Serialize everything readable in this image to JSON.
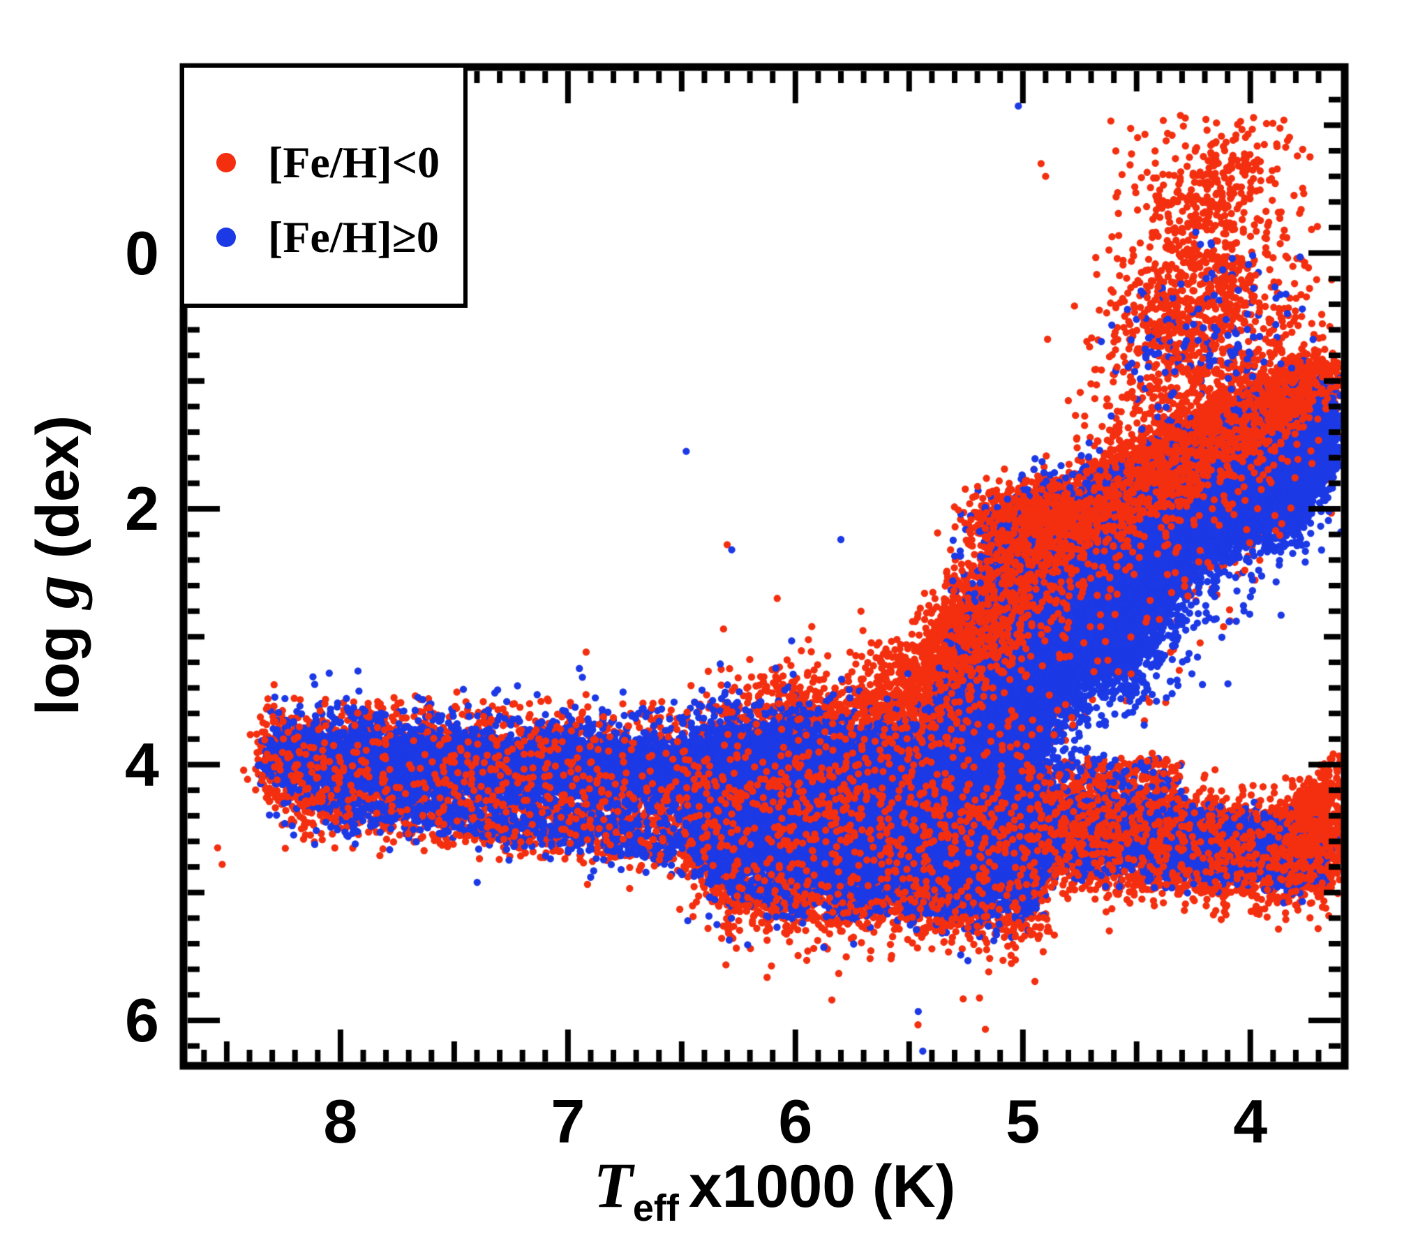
{
  "figure": {
    "background": "#ffffff"
  },
  "chart_data": {
    "type": "scatter",
    "title": "",
    "description": "Kiel diagram: surface gravity log g versus effective temperature for a large stellar sample, split by metallicity",
    "xlabel_parts": {
      "symbol": "T",
      "subscript": "eff",
      "rest": "x1000 (K)"
    },
    "ylabel_parts": {
      "pre": "log ",
      "symbol": "g",
      "post": " (dex)"
    },
    "x_axis": {
      "label": "Teff x1000 (K)",
      "min": 3.585,
      "max": 8.69,
      "reversed": true,
      "major_ticks": [
        {
          "value": 8,
          "label": "8"
        },
        {
          "value": 7,
          "label": "7"
        },
        {
          "value": 6,
          "label": "6"
        },
        {
          "value": 5,
          "label": "5"
        },
        {
          "value": 4,
          "label": "4"
        }
      ],
      "medium_tick_step": 0.5,
      "minor_tick_step": 0.1
    },
    "y_axis": {
      "label": "log g (dex)",
      "min": -1.455,
      "max": 6.355,
      "inverted": true,
      "major_ticks": [
        {
          "value": 0,
          "label": "0"
        },
        {
          "value": 2,
          "label": "2"
        },
        {
          "value": 4,
          "label": "4"
        },
        {
          "value": 6,
          "label": "6"
        }
      ],
      "medium_tick_step": 1.0,
      "minor_tick_step": 0.2
    },
    "legend": {
      "position": "top-left",
      "items": [
        {
          "label": "[Fe/H]<0",
          "color_key": "red"
        },
        {
          "label": "[Fe/H]≥0",
          "color_key": "blue"
        }
      ]
    },
    "colors": {
      "red": "#f42f10",
      "blue": "#1c39e6",
      "axis": "#000000"
    },
    "marker_radius_px": 5.2,
    "seed": 42,
    "draw_order": [
      "red_most",
      "blue_all",
      "red_resprinkle"
    ],
    "series": [
      {
        "name": "metal_poor",
        "label": "[Fe/H]<0",
        "color_key": "red",
        "components": [
          {
            "k": "band",
            "t": [
              8.35,
              6.4
            ],
            "g": [
              3.97,
              4.12
            ],
            "st": 0.04,
            "sg": 0.2,
            "n": 2600
          },
          {
            "k": "band",
            "t": [
              8.2,
              6.35
            ],
            "g": [
              4.28,
              4.62
            ],
            "st": 0.05,
            "sg": 0.13,
            "n": 900
          },
          {
            "k": "band",
            "t": [
              6.4,
              4.9
            ],
            "g": [
              4.32,
              4.52
            ],
            "st": 0.05,
            "sg": 0.4,
            "n": 5200
          },
          {
            "k": "band",
            "t": [
              4.9,
              3.66
            ],
            "g": [
              4.52,
              4.72
            ],
            "st": 0.04,
            "sg": 0.19,
            "n": 3800
          },
          {
            "k": "blob",
            "t": 3.76,
            "g": 4.62,
            "st": 0.07,
            "sg": 0.14,
            "n": 1000
          },
          {
            "k": "band",
            "t": [
              3.78,
              3.64
            ],
            "g": [
              4.45,
              4.18
            ],
            "st": 0.04,
            "sg": 0.12,
            "n": 300
          },
          {
            "k": "band",
            "t": [
              6.3,
              5.1
            ],
            "g": [
              4.95,
              5.1
            ],
            "st": 0.1,
            "sg": 0.12,
            "n": 450
          },
          {
            "k": "band",
            "t": [
              5.6,
              5.05
            ],
            "g": [
              3.55,
              3.05
            ],
            "st": 0.14,
            "sg": 0.22,
            "n": 1100
          },
          {
            "k": "band",
            "t": [
              6.15,
              5.35
            ],
            "g": [
              3.5,
              3.75
            ],
            "st": 0.1,
            "sg": 0.15,
            "n": 420
          },
          {
            "k": "box",
            "t": [
              4.85,
              4.3
            ],
            "g": [
              3.95,
              4.55
            ],
            "n": 350
          },
          {
            "k": "band",
            "t": [
              5.25,
              4.92
            ],
            "g": [
              3.15,
              2.35
            ],
            "st": 0.1,
            "sg": 0.18,
            "n": 2400
          },
          {
            "k": "blob",
            "t": 4.86,
            "g": 2.1,
            "st": 0.14,
            "sg": 0.13,
            "n": 3200
          },
          {
            "k": "band",
            "t": [
              4.6,
              4.0
            ],
            "g": [
              1.95,
              1.35
            ],
            "st": 0.09,
            "sg": 0.16,
            "n": 3800
          },
          {
            "k": "band",
            "t": [
              3.95,
              3.68
            ],
            "g": [
              1.28,
              1.02
            ],
            "st": 0.05,
            "sg": 0.12,
            "n": 1400
          },
          {
            "k": "band",
            "t": [
              5.2,
              3.78
            ],
            "g": [
              3.3,
              1.05
            ],
            "st": 0.12,
            "sg": 0.42,
            "n": 2400
          },
          {
            "k": "band",
            "t": [
              4.5,
              4.02
            ],
            "g": [
              0.8,
              0.1
            ],
            "st": 0.13,
            "sg": 0.33,
            "n": 650
          },
          {
            "k": "band",
            "t": [
              4.32,
              4.08
            ],
            "g": [
              -0.2,
              -0.8
            ],
            "st": 0.13,
            "sg": 0.2,
            "n": 220
          },
          {
            "k": "box",
            "t": [
              3.72,
              4.62
            ],
            "g": [
              -1.1,
              0.6
            ],
            "n": 130
          },
          {
            "k": "box",
            "t": [
              6.35,
              4.9
            ],
            "g": [
              4.95,
              5.3
            ],
            "n": 220
          },
          {
            "k": "box",
            "t": [
              8.3,
              6.4
            ],
            "g": [
              3.5,
              3.8
            ],
            "n": 120
          }
        ],
        "outliers": [
          [
            4.92,
            -0.7
          ],
          [
            4.59,
            -0.44
          ],
          [
            4.58,
            -0.31
          ],
          [
            4.19,
            -0.44
          ],
          [
            4.9,
            -0.6
          ],
          [
            6.3,
            2.28
          ],
          [
            6.92,
            3.12
          ],
          [
            6.08,
            2.7
          ],
          [
            5.95,
            5.53
          ],
          [
            5.4,
            5.44
          ],
          [
            3.73,
            5.08
          ],
          [
            4.29,
            5.14
          ],
          [
            8.54,
            4.65
          ],
          [
            8.52,
            4.78
          ],
          [
            5.15,
            5.62
          ],
          [
            4.62,
            5.3
          ]
        ]
      },
      {
        "name": "metal_rich",
        "label": "[Fe/H]≥0",
        "color_key": "blue",
        "components": [
          {
            "k": "band",
            "t": [
              8.28,
              6.4
            ],
            "g": [
              3.95,
              4.07
            ],
            "st": 0.04,
            "sg": 0.105,
            "n": 5600
          },
          {
            "k": "band",
            "t": [
              8.28,
              6.4
            ],
            "g": [
              3.95,
              4.07
            ],
            "st": 0.05,
            "sg": 0.24,
            "n": 1100
          },
          {
            "k": "band",
            "t": [
              8.05,
              6.45
            ],
            "g": [
              4.3,
              4.6
            ],
            "st": 0.05,
            "sg": 0.1,
            "n": 650
          },
          {
            "k": "band",
            "t": [
              6.4,
              4.95
            ],
            "g": [
              4.28,
              4.47
            ],
            "st": 0.05,
            "sg": 0.29,
            "n": 14500
          },
          {
            "k": "band",
            "t": [
              5.95,
              5.15
            ],
            "g": [
              4.42,
              4.55
            ],
            "st": 0.08,
            "sg": 0.18,
            "n": 3800
          },
          {
            "k": "band",
            "t": [
              6.35,
              5.2
            ],
            "g": [
              3.97,
              4.07
            ],
            "st": 0.05,
            "sg": 0.11,
            "n": 2600
          },
          {
            "k": "band",
            "t": [
              4.9,
              3.72
            ],
            "g": [
              4.53,
              4.7
            ],
            "st": 0.04,
            "sg": 0.12,
            "n": 3400
          },
          {
            "k": "band",
            "t": [
              5.22,
              4.88
            ],
            "g": [
              3.85,
              3.1
            ],
            "st": 0.11,
            "sg": 0.22,
            "n": 2800
          },
          {
            "k": "band",
            "t": [
              5.3,
              5.05
            ],
            "g": [
              4.1,
              3.7
            ],
            "st": 0.1,
            "sg": 0.15,
            "n": 1500
          },
          {
            "k": "band",
            "t": [
              4.95,
              4.7
            ],
            "g": [
              3.15,
              2.6
            ],
            "st": 0.12,
            "sg": 0.2,
            "n": 2600
          },
          {
            "k": "blob",
            "t": 4.72,
            "g": 2.62,
            "st": 0.17,
            "sg": 0.33,
            "n": 6500
          },
          {
            "k": "band",
            "t": [
              4.6,
              3.86
            ],
            "g": [
              2.3,
              1.7
            ],
            "st": 0.1,
            "sg": 0.2,
            "n": 5200
          },
          {
            "k": "band",
            "t": [
              3.9,
              3.7
            ],
            "g": [
              1.95,
              1.35
            ],
            "st": 0.06,
            "sg": 0.17,
            "n": 3200
          },
          {
            "k": "band",
            "t": [
              5.15,
              3.8
            ],
            "g": [
              3.6,
              1.4
            ],
            "st": 0.12,
            "sg": 0.4,
            "n": 1400
          },
          {
            "k": "box",
            "t": [
              4.85,
              4.3
            ],
            "g": [
              3.95,
              4.55
            ],
            "n": 160
          },
          {
            "k": "box",
            "t": [
              6.3,
              4.95
            ],
            "g": [
              4.95,
              5.2
            ],
            "n": 110
          },
          {
            "k": "band",
            "t": [
              4.45,
              4.0
            ],
            "g": [
              0.9,
              0.35
            ],
            "st": 0.12,
            "sg": 0.3,
            "n": 120
          },
          {
            "k": "box",
            "t": [
              8.3,
              6.4
            ],
            "g": [
              3.55,
              3.8
            ],
            "n": 80
          }
        ],
        "outliers": [
          [
            5.02,
            -1.15
          ],
          [
            6.28,
            2.32
          ],
          [
            5.8,
            2.24
          ],
          [
            6.48,
            1.55
          ],
          [
            5.46,
            5.93
          ],
          [
            5.44,
            6.24
          ],
          [
            4.54,
            0.44
          ],
          [
            3.98,
            1.08
          ],
          [
            7.3,
            3.62
          ],
          [
            6.9,
            4.88
          ],
          [
            5.05,
            5.35
          ],
          [
            4.47,
            0.32
          ]
        ]
      }
    ]
  }
}
